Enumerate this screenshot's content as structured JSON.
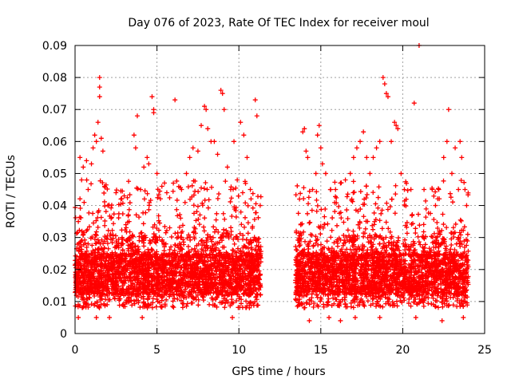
{
  "chart_data": {
    "type": "scatter",
    "title": "Day 076 of 2023, Rate Of TEC Index for receiver moul",
    "xlabel": "GPS time / hours",
    "ylabel": "ROTI / TECUs",
    "xlim": [
      0,
      25
    ],
    "ylim": [
      0,
      0.09
    ],
    "xticks": [
      0,
      5,
      10,
      15,
      20,
      25
    ],
    "xtick_labels": [
      "0",
      "5",
      "10",
      "15",
      "20",
      "25"
    ],
    "yticks": [
      0,
      0.01,
      0.02,
      0.03,
      0.04,
      0.05,
      0.06,
      0.07,
      0.08,
      0.09
    ],
    "ytick_labels": [
      "0",
      "0.01",
      "0.02",
      "0.03",
      "0.04",
      "0.05",
      "0.06",
      "0.07",
      "0.08",
      "0.09"
    ],
    "grid": true,
    "marker": "+",
    "color": "#ff0000",
    "data_gap_hours": [
      11.5,
      13.4
    ],
    "series": [
      {
        "name": "moul",
        "points": [
          [
            0.1,
            0.022
          ],
          [
            0.2,
            0.035
          ],
          [
            0.3,
            0.055
          ],
          [
            0.4,
            0.048
          ],
          [
            0.5,
            0.052
          ],
          [
            0.7,
            0.054
          ],
          [
            0.8,
            0.045
          ],
          [
            1.0,
            0.053
          ],
          [
            1.1,
            0.058
          ],
          [
            1.2,
            0.062
          ],
          [
            1.3,
            0.06
          ],
          [
            1.4,
            0.066
          ],
          [
            1.5,
            0.074
          ],
          [
            1.5,
            0.077
          ],
          [
            1.5,
            0.08
          ],
          [
            1.6,
            0.061
          ],
          [
            1.7,
            0.057
          ],
          [
            1.8,
            0.046
          ],
          [
            2.0,
            0.04
          ],
          [
            2.2,
            0.036
          ],
          [
            2.5,
            0.044
          ],
          [
            2.8,
            0.042
          ],
          [
            3.0,
            0.043
          ],
          [
            3.3,
            0.035
          ],
          [
            3.6,
            0.062
          ],
          [
            3.7,
            0.058
          ],
          [
            3.8,
            0.068
          ],
          [
            4.0,
            0.045
          ],
          [
            4.2,
            0.052
          ],
          [
            4.4,
            0.055
          ],
          [
            4.5,
            0.053
          ],
          [
            4.7,
            0.074
          ],
          [
            4.8,
            0.07
          ],
          [
            4.8,
            0.069
          ],
          [
            5.0,
            0.05
          ],
          [
            5.3,
            0.046
          ],
          [
            5.6,
            0.044
          ],
          [
            6.0,
            0.047
          ],
          [
            6.1,
            0.073
          ],
          [
            6.5,
            0.045
          ],
          [
            6.8,
            0.05
          ],
          [
            7.0,
            0.055
          ],
          [
            7.2,
            0.058
          ],
          [
            7.5,
            0.057
          ],
          [
            7.7,
            0.065
          ],
          [
            7.9,
            0.071
          ],
          [
            8.0,
            0.07
          ],
          [
            8.1,
            0.064
          ],
          [
            8.3,
            0.06
          ],
          [
            8.5,
            0.06
          ],
          [
            8.7,
            0.056
          ],
          [
            8.9,
            0.076
          ],
          [
            9.0,
            0.075
          ],
          [
            9.1,
            0.07
          ],
          [
            9.3,
            0.052
          ],
          [
            9.5,
            0.045
          ],
          [
            9.7,
            0.06
          ],
          [
            9.9,
            0.048
          ],
          [
            10.1,
            0.066
          ],
          [
            10.3,
            0.062
          ],
          [
            10.5,
            0.055
          ],
          [
            10.7,
            0.045
          ],
          [
            11.0,
            0.073
          ],
          [
            11.1,
            0.068
          ],
          [
            11.3,
            0.04
          ],
          [
            13.5,
            0.032
          ],
          [
            13.7,
            0.042
          ],
          [
            13.9,
            0.063
          ],
          [
            14.0,
            0.064
          ],
          [
            14.1,
            0.057
          ],
          [
            14.2,
            0.055
          ],
          [
            14.5,
            0.045
          ],
          [
            14.7,
            0.05
          ],
          [
            14.8,
            0.062
          ],
          [
            14.9,
            0.065
          ],
          [
            15.0,
            0.058
          ],
          [
            15.1,
            0.053
          ],
          [
            15.3,
            0.05
          ],
          [
            15.6,
            0.045
          ],
          [
            15.9,
            0.045
          ],
          [
            16.2,
            0.047
          ],
          [
            16.5,
            0.048
          ],
          [
            16.8,
            0.05
          ],
          [
            17.0,
            0.055
          ],
          [
            17.2,
            0.058
          ],
          [
            17.4,
            0.06
          ],
          [
            17.6,
            0.063
          ],
          [
            17.8,
            0.055
          ],
          [
            18.0,
            0.05
          ],
          [
            18.2,
            0.055
          ],
          [
            18.4,
            0.058
          ],
          [
            18.6,
            0.06
          ],
          [
            18.8,
            0.08
          ],
          [
            18.9,
            0.078
          ],
          [
            19.0,
            0.075
          ],
          [
            19.1,
            0.074
          ],
          [
            19.3,
            0.06
          ],
          [
            19.5,
            0.066
          ],
          [
            19.6,
            0.065
          ],
          [
            19.7,
            0.064
          ],
          [
            19.9,
            0.05
          ],
          [
            20.1,
            0.045
          ],
          [
            20.5,
            0.045
          ],
          [
            20.7,
            0.072
          ],
          [
            21.0,
            0.09
          ],
          [
            21.3,
            0.045
          ],
          [
            21.8,
            0.045
          ],
          [
            22.0,
            0.04
          ],
          [
            22.2,
            0.045
          ],
          [
            22.5,
            0.055
          ],
          [
            22.7,
            0.06
          ],
          [
            22.8,
            0.07
          ],
          [
            23.0,
            0.05
          ],
          [
            23.2,
            0.058
          ],
          [
            23.4,
            0.045
          ],
          [
            23.5,
            0.06
          ],
          [
            23.6,
            0.055
          ],
          [
            23.8,
            0.045
          ],
          [
            23.9,
            0.04
          ],
          [
            0.2,
            0.005
          ],
          [
            1.3,
            0.005
          ],
          [
            2.1,
            0.005
          ],
          [
            4.1,
            0.005
          ],
          [
            9.6,
            0.005
          ],
          [
            14.3,
            0.004
          ],
          [
            15.5,
            0.005
          ],
          [
            16.2,
            0.004
          ],
          [
            17.1,
            0.005
          ],
          [
            18.6,
            0.005
          ],
          [
            20.8,
            0.005
          ],
          [
            22.4,
            0.004
          ],
          [
            23.7,
            0.005
          ]
        ],
        "band": {
          "ranges_hours": [
            [
              0.0,
              11.35
            ],
            [
              13.45,
              24.0
            ]
          ],
          "typical_min": 0.008,
          "typical_max": 0.03,
          "core_min": 0.012,
          "core_max": 0.025
        }
      }
    ]
  }
}
